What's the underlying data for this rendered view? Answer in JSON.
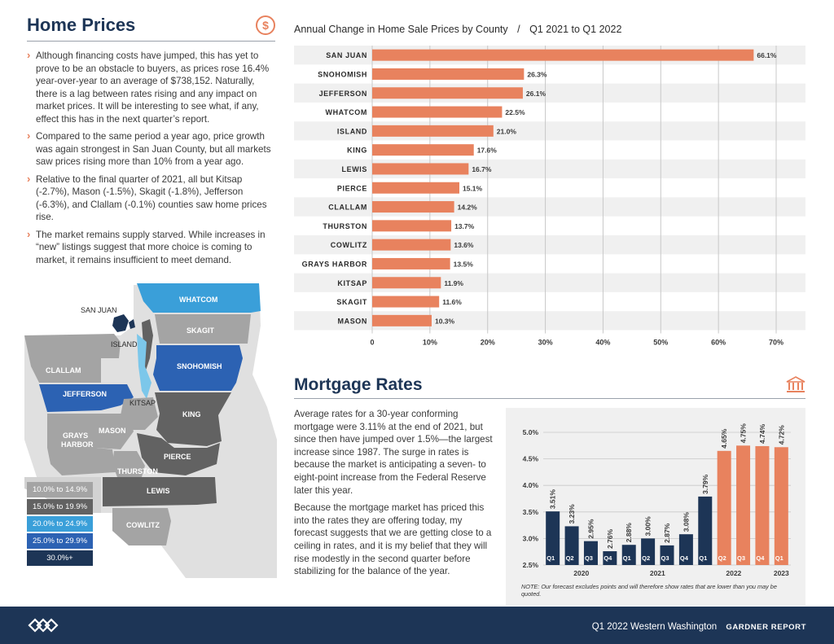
{
  "home_prices": {
    "title": "Home Prices",
    "bullets": [
      "Although financing costs have jumped, this has yet to prove to be an obstacle to buyers, as prices rose 16.4% year-over-year to an average of $738,152. Naturally, there is a lag between rates rising and any impact on market prices. It will be interesting to see what, if any, effect this has in the next quarter’s report.",
      "Compared to the same period a year ago, price growth was again strongest in San Juan County, but all markets saw prices rising more than 10% from a year ago.",
      "Relative to the final quarter of 2021, all but Kitsap (-2.7%), Mason (-1.5%), Skagit (-1.8%), Jefferson (-6.3%), and Clallam (-0.1%) counties saw home prices rise.",
      "The market remains supply starved. While increases in “new” listings suggest that more choice is coming to market, it remains insufficient to meet demand."
    ]
  },
  "map": {
    "labels": {
      "whatcom": "WHATCOM",
      "san_juan": "SAN JUAN",
      "skagit": "SKAGIT",
      "island": "ISLAND",
      "snohomish": "SNOHOMISH",
      "clallam": "CLALLAM",
      "jefferson": "JEFFERSON",
      "kitsap": "KITSAP",
      "king": "KING",
      "grays_harbor_1": "GRAYS",
      "grays_harbor_2": "HARBOR",
      "mason": "MASON",
      "pierce": "PIERCE",
      "thurston": "THURSTON",
      "lewis": "LEWIS",
      "cowlitz": "COWLITZ"
    },
    "legend": [
      {
        "label": "10.0% to 14.9%",
        "color": "#a4a4a4"
      },
      {
        "label": "15.0% to 19.9%",
        "color": "#626262"
      },
      {
        "label": "20.0% to 24.9%",
        "color": "#3a9fd9"
      },
      {
        "label": "25.0% to 29.9%",
        "color": "#2c62b3"
      },
      {
        "label": "30.0%+",
        "color": "#1d3556"
      }
    ]
  },
  "chart_data": [
    {
      "type": "bar",
      "orientation": "horizontal",
      "title": "Annual Change in Home Sale Prices by County",
      "subtitle": "Q1 2021 to Q1 2022",
      "categories": [
        "SAN JUAN",
        "SNOHOMISH",
        "JEFFERSON",
        "WHATCOM",
        "ISLAND",
        "KING",
        "LEWIS",
        "PIERCE",
        "CLALLAM",
        "THURSTON",
        "COWLITZ",
        "GRAYS HARBOR",
        "KITSAP",
        "SKAGIT",
        "MASON"
      ],
      "values": [
        66.1,
        26.3,
        26.1,
        22.5,
        21.0,
        17.6,
        16.7,
        15.1,
        14.2,
        13.7,
        13.6,
        13.5,
        11.9,
        11.6,
        10.3
      ],
      "data_labels": [
        "66.1%",
        "26.3%",
        "26.1%",
        "22.5%",
        "21.0%",
        "17.6%",
        "16.7%",
        "15.1%",
        "14.2%",
        "13.7%",
        "13.6%",
        "13.5%",
        "11.9%",
        "11.6%",
        "10.3%"
      ],
      "xlim": [
        0,
        70
      ],
      "ticks": [
        "0",
        "10%",
        "20%",
        "30%",
        "40%",
        "50%",
        "60%",
        "70%"
      ],
      "color": "#e8825e",
      "grid": true
    },
    {
      "type": "bar",
      "title": "",
      "x": [
        "Q1",
        "Q2",
        "Q3",
        "Q4",
        "Q1",
        "Q2",
        "Q3",
        "Q4",
        "Q1",
        "Q2",
        "Q3",
        "Q4",
        "Q1"
      ],
      "years": [
        {
          "label": "2020",
          "first": 0,
          "last": 3
        },
        {
          "label": "2021",
          "first": 4,
          "last": 7
        },
        {
          "label": "2022",
          "first": 8,
          "last": 11
        },
        {
          "label": "2023",
          "first": 12,
          "last": 12
        }
      ],
      "values": [
        3.51,
        3.23,
        2.95,
        2.76,
        2.88,
        3.0,
        2.87,
        3.08,
        3.79,
        4.65,
        4.75,
        4.74,
        4.72
      ],
      "data_labels": [
        "3.51%",
        "3.23%",
        "2.95%",
        "2.76%",
        "2.88%",
        "3.00%",
        "2.87%",
        "3.08%",
        "3.79%",
        "4.65%",
        "4.75%",
        "4.74%",
        "4.72%"
      ],
      "forecast_from": 9,
      "ylim": [
        2.5,
        5.0
      ],
      "yticks": [
        "2.5%",
        "3.0%",
        "3.5%",
        "4.0%",
        "4.5%",
        "5.0%"
      ],
      "colors": {
        "actual": "#1d3556",
        "forecast": "#e8825e"
      },
      "grid": true
    }
  ],
  "mortgage": {
    "title": "Mortgage Rates",
    "paragraphs": [
      "Average rates for a 30-year conforming mortgage were 3.11% at the end of 2021, but since then have jumped over 1.5%—the largest increase since 1987. The surge in rates is because the market is anticipating a seven- to eight-point increase from the Federal Reserve later this year.",
      "Because the mortgage market has priced this into the rates they are offering today, my forecast suggests that we are getting close to a ceiling in rates, and it is my belief that they will rise modestly in the second quarter before stabilizing for the balance of the year."
    ],
    "note": "NOTE: Our forecast excludes points and will therefore show rates that are lower than you may be quoted."
  },
  "footer": {
    "text": "Q1 2022  Western Washington",
    "report": "GARDNER REPORT"
  }
}
